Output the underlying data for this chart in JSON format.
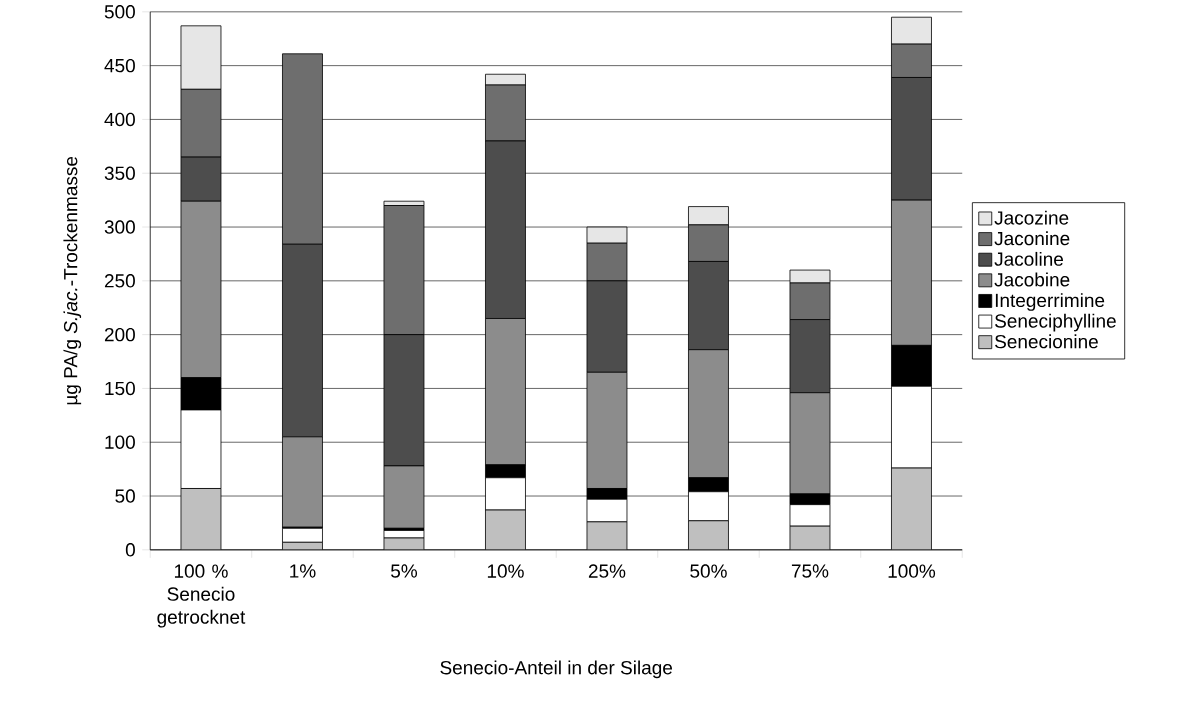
{
  "chart_data": {
    "type": "bar",
    "stacked": true,
    "xlabel": "Senecio-Anteil in der Silage",
    "ylabel": "µg PA/g *S.jac.*-Trockenmasse",
    "categories": [
      "100 % Senecio getrocknet",
      "1%",
      "5%",
      "10%",
      "25%",
      "50%",
      "75%",
      "100%"
    ],
    "ylim": [
      0,
      500
    ],
    "yticks": [
      0,
      50,
      100,
      150,
      200,
      250,
      300,
      350,
      400,
      450,
      500
    ],
    "grid": "y",
    "legend": "right",
    "series": [
      {
        "name": "Senecionine",
        "color": "#bfbfbf",
        "values": [
          57,
          7,
          11,
          37,
          26,
          27,
          22,
          76
        ]
      },
      {
        "name": "Seneciphylline",
        "color": "#ffffff",
        "values": [
          73,
          13,
          7,
          30,
          21,
          27,
          20,
          76
        ]
      },
      {
        "name": "Integerrimine",
        "color": "#000000",
        "values": [
          30,
          1,
          2,
          12,
          10,
          13,
          10,
          38
        ]
      },
      {
        "name": "Jacobine",
        "color": "#8c8c8c",
        "values": [
          164,
          84,
          58,
          136,
          108,
          119,
          94,
          135
        ]
      },
      {
        "name": "Jacoline",
        "color": "#4d4d4d",
        "values": [
          41,
          179,
          122,
          165,
          85,
          82,
          68,
          114
        ]
      },
      {
        "name": "Jaconine",
        "color": "#6e6e6e",
        "values": [
          63,
          177,
          120,
          52,
          35,
          34,
          34,
          31
        ]
      },
      {
        "name": "Jacozine",
        "color": "#e6e6e6",
        "values": [
          59,
          0,
          4,
          10,
          15,
          17,
          12,
          25
        ]
      }
    ]
  }
}
